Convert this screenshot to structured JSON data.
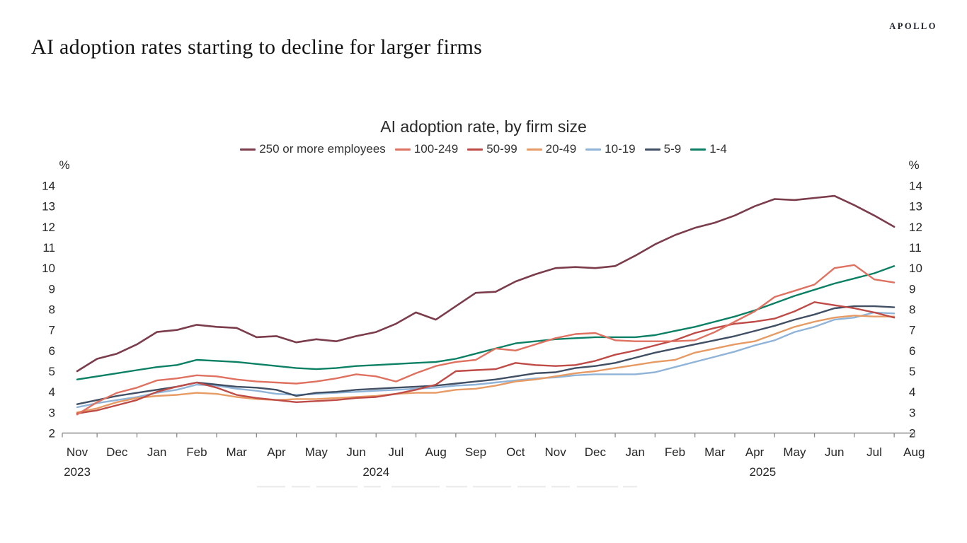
{
  "page": {
    "title": "AI adoption rates starting to decline for larger firms",
    "brand": "APOLLO"
  },
  "chart_data": {
    "type": "line",
    "title": "AI adoption rate, by firm size",
    "xlabel": "",
    "ylabel": "%",
    "y_unit_label": "%",
    "ylim": [
      2,
      14
    ],
    "y_ticks": [
      2,
      3,
      4,
      5,
      6,
      7,
      8,
      9,
      10,
      11,
      12,
      13,
      14
    ],
    "grid": false,
    "legend_position": "top",
    "x_axis_note": "semi-monthly observations, Nov 2023 through late Jul 2025",
    "points_per_month": 2,
    "x_month_labels": [
      "Nov",
      "Dec",
      "Jan",
      "Feb",
      "Mar",
      "Apr",
      "May",
      "Jun",
      "Jul",
      "Aug",
      "Sep",
      "Oct",
      "Nov",
      "Dec",
      "Jan",
      "Feb",
      "Mar",
      "Apr",
      "May",
      "Jun",
      "Jul",
      "Aug"
    ],
    "year_labels": [
      {
        "label": "2023",
        "month_index": 0
      },
      {
        "label": "2024",
        "month_index": 7.5
      },
      {
        "label": "2025",
        "month_index": 17.2
      }
    ],
    "series": [
      {
        "name": "250 or more employees",
        "color": "#7b3c4c",
        "values": [
          5.0,
          5.6,
          5.85,
          6.3,
          6.9,
          7.0,
          7.25,
          7.15,
          7.1,
          6.65,
          6.7,
          6.4,
          6.55,
          6.45,
          6.7,
          6.9,
          7.3,
          7.85,
          7.5,
          8.15,
          8.8,
          8.85,
          9.35,
          9.7,
          10.0,
          10.05,
          10.0,
          10.1,
          10.6,
          11.15,
          11.6,
          11.95,
          12.2,
          12.55,
          13.0,
          13.35,
          13.3,
          13.4,
          13.5,
          13.05,
          12.55,
          12.0
        ]
      },
      {
        "name": "100-249",
        "color": "#df7160",
        "values": [
          2.9,
          3.5,
          3.95,
          4.2,
          4.55,
          4.65,
          4.8,
          4.75,
          4.6,
          4.5,
          4.45,
          4.4,
          4.5,
          4.65,
          4.85,
          4.75,
          4.5,
          4.9,
          5.25,
          5.45,
          5.55,
          6.1,
          6.0,
          6.3,
          6.6,
          6.8,
          6.85,
          6.5,
          6.45,
          6.45,
          6.45,
          6.5,
          6.9,
          7.4,
          7.9,
          8.6,
          8.9,
          9.2,
          10.0,
          10.15,
          9.45,
          9.3
        ]
      },
      {
        "name": "50-99",
        "color": "#bf4b47",
        "values": [
          2.95,
          3.1,
          3.35,
          3.6,
          4.0,
          4.25,
          4.45,
          4.2,
          3.85,
          3.7,
          3.6,
          3.5,
          3.55,
          3.6,
          3.7,
          3.75,
          3.9,
          4.1,
          4.35,
          5.0,
          5.05,
          5.1,
          5.4,
          5.3,
          5.25,
          5.3,
          5.5,
          5.8,
          6.0,
          6.25,
          6.5,
          6.85,
          7.1,
          7.3,
          7.4,
          7.55,
          7.9,
          8.35,
          8.2,
          8.05,
          7.85,
          7.6
        ]
      },
      {
        "name": "20-49",
        "color": "#e79b64",
        "values": [
          3.0,
          3.2,
          3.5,
          3.7,
          3.8,
          3.85,
          3.95,
          3.9,
          3.75,
          3.65,
          3.6,
          3.65,
          3.65,
          3.7,
          3.75,
          3.8,
          3.9,
          3.95,
          3.95,
          4.1,
          4.15,
          4.3,
          4.5,
          4.6,
          4.75,
          4.9,
          5.0,
          5.15,
          5.3,
          5.45,
          5.55,
          5.9,
          6.1,
          6.3,
          6.45,
          6.8,
          7.15,
          7.4,
          7.6,
          7.7,
          7.65,
          7.65
        ]
      },
      {
        "name": "10-19",
        "color": "#90b4d8",
        "values": [
          3.25,
          3.45,
          3.6,
          3.75,
          3.95,
          4.1,
          4.35,
          4.3,
          4.15,
          4.05,
          3.9,
          3.85,
          3.9,
          3.95,
          4.0,
          4.05,
          4.1,
          4.15,
          4.2,
          4.3,
          4.35,
          4.45,
          4.55,
          4.65,
          4.7,
          4.8,
          4.85,
          4.85,
          4.85,
          4.95,
          5.2,
          5.45,
          5.7,
          5.95,
          6.25,
          6.5,
          6.9,
          7.15,
          7.5,
          7.6,
          7.85,
          7.8
        ]
      },
      {
        "name": "5-9",
        "color": "#404f63",
        "values": [
          3.4,
          3.6,
          3.8,
          3.95,
          4.1,
          4.25,
          4.45,
          4.35,
          4.25,
          4.2,
          4.1,
          3.8,
          3.95,
          4.0,
          4.1,
          4.15,
          4.2,
          4.25,
          4.3,
          4.4,
          4.5,
          4.6,
          4.75,
          4.9,
          4.95,
          5.15,
          5.25,
          5.4,
          5.65,
          5.9,
          6.1,
          6.3,
          6.5,
          6.7,
          6.95,
          7.2,
          7.5,
          7.75,
          8.05,
          8.15,
          8.15,
          8.1
        ]
      },
      {
        "name": "1-4",
        "color": "#0c8064",
        "values": [
          4.6,
          4.75,
          4.9,
          5.05,
          5.2,
          5.3,
          5.55,
          5.5,
          5.45,
          5.35,
          5.25,
          5.15,
          5.1,
          5.15,
          5.25,
          5.3,
          5.35,
          5.4,
          5.45,
          5.6,
          5.85,
          6.1,
          6.35,
          6.45,
          6.55,
          6.6,
          6.65,
          6.65,
          6.65,
          6.75,
          6.95,
          7.15,
          7.4,
          7.65,
          7.95,
          8.3,
          8.65,
          8.95,
          9.25,
          9.5,
          9.75,
          10.1
        ]
      }
    ]
  }
}
